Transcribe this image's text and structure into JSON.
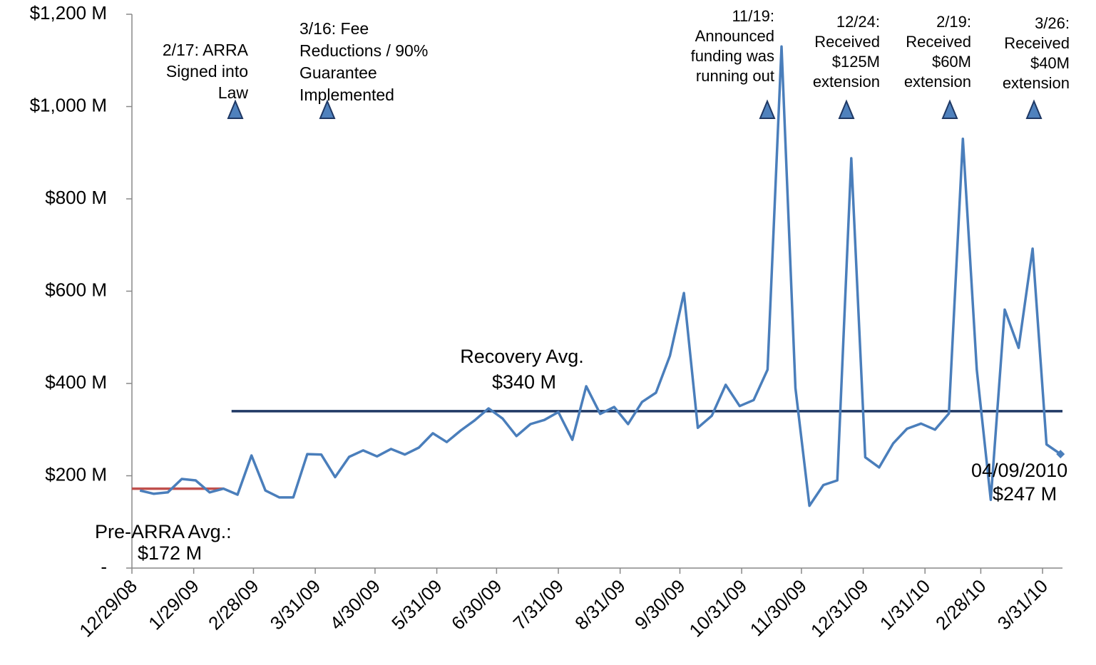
{
  "chart_data": {
    "type": "line",
    "x": [
      "1/2/09",
      "1/9/09",
      "1/16/09",
      "1/23/09",
      "1/30/09",
      "2/6/09",
      "2/13/09",
      "2/20/09",
      "2/27/09",
      "3/6/09",
      "3/13/09",
      "3/20/09",
      "3/27/09",
      "4/3/09",
      "4/10/09",
      "4/17/09",
      "4/24/09",
      "5/1/09",
      "5/8/09",
      "5/15/09",
      "5/22/09",
      "5/29/09",
      "6/5/09",
      "6/12/09",
      "6/19/09",
      "6/26/09",
      "7/3/09",
      "7/10/09",
      "7/17/09",
      "7/24/09",
      "7/31/09",
      "8/7/09",
      "8/14/09",
      "8/21/09",
      "8/28/09",
      "9/4/09",
      "9/11/09",
      "9/18/09",
      "9/25/09",
      "10/2/09",
      "10/9/09",
      "10/16/09",
      "10/23/09",
      "10/30/09",
      "11/6/09",
      "11/13/09",
      "11/20/09",
      "11/27/09",
      "12/4/09",
      "12/11/09",
      "12/18/09",
      "12/25/09",
      "1/1/10",
      "1/8/10",
      "1/15/10",
      "1/22/10",
      "1/29/10",
      "2/5/10",
      "2/12/10",
      "2/19/10",
      "2/26/10",
      "3/5/10",
      "3/12/10",
      "3/19/10",
      "3/26/10",
      "4/2/10",
      "4/9/10"
    ],
    "values": [
      168,
      161,
      164,
      193,
      190,
      164,
      172,
      159,
      244,
      168,
      153,
      153,
      247,
      246,
      197,
      241,
      255,
      242,
      258,
      246,
      261,
      292,
      273,
      298,
      320,
      346,
      324,
      286,
      312,
      321,
      338,
      278,
      394,
      334,
      349,
      312,
      360,
      380,
      460,
      596,
      304,
      330,
      397,
      351,
      364,
      430,
      1130,
      390,
      135,
      180,
      190,
      888,
      240,
      218,
      270,
      302,
      313,
      300,
      335,
      930,
      430,
      148,
      560,
      477,
      692,
      268,
      247
    ],
    "color": "#4a7ebb",
    "xlim": [
      "12/29/08",
      "4/10/10"
    ],
    "xticks": [
      "12/29/08",
      "1/29/09",
      "2/28/09",
      "3/31/09",
      "4/30/09",
      "5/31/09",
      "6/30/09",
      "7/31/09",
      "8/31/09",
      "9/30/09",
      "10/31/09",
      "11/30/09",
      "12/31/09",
      "1/31/10",
      "2/28/10",
      "3/31/10"
    ],
    "ylim": [
      0,
      1200
    ],
    "yticks": [
      {
        "value": 0,
        "label": "-"
      },
      {
        "value": 200,
        "label": "$200 M"
      },
      {
        "value": 400,
        "label": "$400 M"
      },
      {
        "value": 600,
        "label": "$600 M"
      },
      {
        "value": 800,
        "label": "$800 M"
      },
      {
        "value": 1000,
        "label": "$1,000 M"
      },
      {
        "value": 1200,
        "label": "$1,200 M"
      }
    ],
    "grid": false,
    "reference_lines": [
      {
        "name": "Pre-ARRA Avg.:",
        "value": 172,
        "value_label": "$172 M",
        "x": [
          "12/29/08",
          "2/13/09"
        ],
        "color": "#c0504d"
      },
      {
        "name": "Recovery Avg.",
        "value": 340,
        "value_label": "$340 M",
        "x": [
          "2/17/09",
          "4/10/10"
        ],
        "color": "#1f3864"
      }
    ],
    "last_label": {
      "date": "04/09/2010",
      "value": 247,
      "label": "$247 M"
    },
    "events": [
      {
        "lines": [
          "2/17: ARRA",
          "Signed into",
          "Law"
        ]
      },
      {
        "lines": [
          "3/16: Fee",
          "Reductions / 90%",
          "Guarantee",
          "Implemented"
        ]
      },
      {
        "lines": [
          "11/19:",
          "Announced",
          "funding was",
          "running out"
        ]
      },
      {
        "lines": [
          "12/24:",
          "Received",
          "$125M",
          "extension"
        ]
      },
      {
        "lines": [
          "2/19:",
          "Received",
          "$60M",
          "extension"
        ]
      },
      {
        "lines": [
          "3/26:",
          "Received",
          "$40M",
          "extension"
        ]
      }
    ]
  }
}
